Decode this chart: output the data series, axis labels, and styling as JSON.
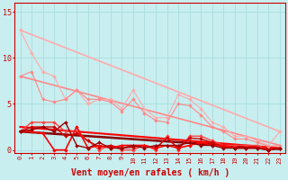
{
  "title": "",
  "xlabel": "Vent moyen/en rafales ( km/h )",
  "background_color": "#c8eef0",
  "grid_color": "#aadddd",
  "x_ticks": [
    0,
    1,
    2,
    3,
    4,
    5,
    6,
    7,
    8,
    9,
    10,
    11,
    12,
    13,
    14,
    15,
    16,
    17,
    18,
    19,
    20,
    21,
    22,
    23
  ],
  "ylim": [
    -0.3,
    16
  ],
  "xlim": [
    -0.5,
    23.5
  ],
  "yticks": [
    0,
    5,
    10,
    15
  ],
  "lines": [
    {
      "color": "#ffaaaa",
      "lw": 0.8,
      "marker": "D",
      "ms": 2.0,
      "data_x": [
        0,
        1,
        2,
        3,
        4,
        5,
        6,
        7,
        8,
        9,
        10,
        11,
        12,
        13,
        14,
        15,
        16,
        17,
        18,
        19,
        20,
        21,
        22,
        23
      ],
      "data_y": [
        13.0,
        10.5,
        8.5,
        8.0,
        5.5,
        6.5,
        5.0,
        5.5,
        5.5,
        4.5,
        6.5,
        4.5,
        3.5,
        3.5,
        6.0,
        5.5,
        4.5,
        3.0,
        2.5,
        1.5,
        1.5,
        1.0,
        0.5,
        2.0
      ]
    },
    {
      "color": "#ffaaaa",
      "lw": 1.2,
      "marker": null,
      "ms": 0,
      "data_x": [
        0,
        23
      ],
      "data_y": [
        13.0,
        2.0
      ]
    },
    {
      "color": "#ff8888",
      "lw": 0.8,
      "marker": "D",
      "ms": 2.0,
      "data_x": [
        0,
        1,
        2,
        3,
        4,
        5,
        6,
        7,
        8,
        9,
        10,
        11,
        12,
        13,
        14,
        15,
        16,
        17,
        18,
        19,
        20,
        21,
        22,
        23
      ],
      "data_y": [
        8.0,
        8.5,
        5.5,
        5.2,
        5.5,
        6.5,
        5.5,
        5.5,
        5.2,
        4.2,
        5.5,
        4.0,
        3.2,
        3.0,
        5.0,
        4.8,
        3.8,
        2.5,
        2.0,
        1.2,
        1.2,
        0.8,
        0.4,
        0.5
      ]
    },
    {
      "color": "#ff8888",
      "lw": 1.2,
      "marker": null,
      "ms": 0,
      "data_x": [
        0,
        23
      ],
      "data_y": [
        8.0,
        0.5
      ]
    },
    {
      "color": "#ff4444",
      "lw": 1.0,
      "marker": "D",
      "ms": 2.0,
      "data_x": [
        0,
        1,
        2,
        3,
        4,
        5,
        6,
        7,
        8,
        9,
        10,
        11,
        12,
        13,
        14,
        15,
        16,
        17,
        18,
        19,
        20,
        21,
        22,
        23
      ],
      "data_y": [
        2.0,
        3.0,
        3.0,
        3.0,
        2.0,
        2.0,
        1.0,
        0.0,
        0.5,
        0.0,
        0.0,
        0.5,
        0.0,
        1.5,
        0.0,
        1.5,
        1.5,
        1.0,
        0.5,
        0.5,
        0.5,
        0.5,
        0.0,
        0.2
      ]
    },
    {
      "color": "#cc0000",
      "lw": 1.0,
      "marker": "D",
      "ms": 2.0,
      "data_x": [
        0,
        1,
        2,
        3,
        4,
        5,
        6,
        7,
        8,
        9,
        10,
        11,
        12,
        13,
        14,
        15,
        16,
        17,
        18,
        19,
        20,
        21,
        22,
        23
      ],
      "data_y": [
        2.0,
        2.5,
        2.5,
        2.5,
        1.5,
        1.8,
        1.0,
        0.3,
        0.5,
        0.2,
        0.3,
        0.5,
        0.2,
        1.3,
        0.2,
        1.3,
        1.2,
        0.8,
        0.3,
        0.3,
        0.3,
        0.3,
        0.0,
        0.2
      ]
    },
    {
      "color": "#ff0000",
      "lw": 1.2,
      "marker": "D",
      "ms": 2.0,
      "data_x": [
        0,
        1,
        2,
        3,
        4,
        5,
        6,
        7,
        8,
        9,
        10,
        11,
        12,
        13,
        14,
        15,
        16,
        17,
        18,
        19,
        20,
        21,
        22,
        23
      ],
      "data_y": [
        2.0,
        2.0,
        1.8,
        0.0,
        0.0,
        2.5,
        0.2,
        0.5,
        0.2,
        0.5,
        0.5,
        0.5,
        0.2,
        0.5,
        0.2,
        0.5,
        0.8,
        0.5,
        0.5,
        0.2,
        0.2,
        0.2,
        0.0,
        0.2
      ]
    },
    {
      "color": "#990000",
      "lw": 1.0,
      "marker": "D",
      "ms": 2.0,
      "data_x": [
        0,
        1,
        2,
        3,
        4,
        5,
        6,
        7,
        8,
        9,
        10,
        11,
        12,
        13,
        14,
        15,
        16,
        17,
        18,
        19,
        20,
        21,
        22,
        23
      ],
      "data_y": [
        2.0,
        2.2,
        2.5,
        2.0,
        3.0,
        0.5,
        0.2,
        0.8,
        0.2,
        0.2,
        0.5,
        0.2,
        0.5,
        0.5,
        0.5,
        0.8,
        0.5,
        0.5,
        0.2,
        0.2,
        0.2,
        0.2,
        0.0,
        0.2
      ]
    },
    {
      "color": "#880000",
      "lw": 1.8,
      "marker": null,
      "ms": 0,
      "data_x": [
        0,
        23
      ],
      "data_y": [
        2.0,
        0.1
      ]
    },
    {
      "color": "#ff0000",
      "lw": 1.5,
      "marker": null,
      "ms": 0,
      "data_x": [
        0,
        23
      ],
      "data_y": [
        2.5,
        0.2
      ]
    }
  ],
  "tick_fontsize": 5.0,
  "xlabel_fontsize": 7.0,
  "tick_color": "#cc0000",
  "label_color": "#cc0000",
  "spine_color": "#cc0000"
}
